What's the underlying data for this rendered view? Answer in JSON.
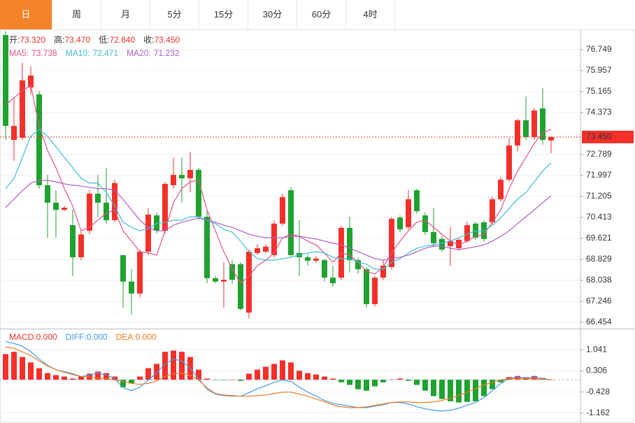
{
  "tabs": [
    "日",
    "周",
    "月",
    "5分",
    "15分",
    "30分",
    "60分",
    "4时"
  ],
  "active_tab": 0,
  "chart_data": [
    {
      "type": "candlestick",
      "up_color": "#f5302a",
      "down_color": "#1fa22f",
      "ylim": [
        66.216,
        77.435
      ],
      "yticks": [
        76.749,
        75.957,
        75.165,
        74.373,
        72.789,
        71.997,
        71.205,
        70.413,
        69.621,
        68.829,
        68.038,
        67.246,
        66.454
      ],
      "grid": true,
      "info": [
        {
          "name": "开:",
          "text": "73.320"
        },
        {
          "name": "高:",
          "text": "73.470"
        },
        {
          "name": "低:",
          "text": "72.840"
        },
        {
          "name": "收:",
          "text": "73.450"
        }
      ],
      "last_price": 73.45,
      "last_price_label": "73.450",
      "candles": [
        {
          "o": 77.3,
          "h": 77.44,
          "l": 73.34,
          "c": 73.87
        },
        {
          "o": 73.34,
          "h": 74.93,
          "l": 72.55,
          "c": 73.87
        },
        {
          "o": 73.42,
          "h": 76.25,
          "l": 73.34,
          "c": 75.59
        },
        {
          "o": 75.32,
          "h": 76.12,
          "l": 75.06,
          "c": 75.77
        },
        {
          "o": 75.06,
          "h": 75.19,
          "l": 71.5,
          "c": 71.63
        },
        {
          "o": 71.63,
          "h": 72.02,
          "l": 69.65,
          "c": 70.97
        },
        {
          "o": 70.97,
          "h": 71.44,
          "l": 69.65,
          "c": 70.7
        },
        {
          "o": 70.7,
          "h": 70.85,
          "l": 70.65,
          "c": 70.78
        },
        {
          "o": 70.12,
          "h": 70.7,
          "l": 68.2,
          "c": 68.91
        },
        {
          "o": 68.91,
          "h": 69.91,
          "l": 68.8,
          "c": 69.77
        },
        {
          "o": 69.91,
          "h": 71.44,
          "l": 69.78,
          "c": 71.31
        },
        {
          "o": 71.31,
          "h": 72.02,
          "l": 70.44,
          "c": 70.97
        },
        {
          "o": 70.97,
          "h": 72.29,
          "l": 70.18,
          "c": 70.31
        },
        {
          "o": 70.31,
          "h": 71.84,
          "l": 70.23,
          "c": 71.71
        },
        {
          "o": 68.99,
          "h": 68.99,
          "l": 67.01,
          "c": 67.99
        },
        {
          "o": 67.99,
          "h": 68.46,
          "l": 66.74,
          "c": 67.54
        },
        {
          "o": 67.54,
          "h": 69.2,
          "l": 67.4,
          "c": 69.12
        },
        {
          "o": 69.12,
          "h": 70.76,
          "l": 68.99,
          "c": 70.52
        },
        {
          "o": 70.49,
          "h": 70.6,
          "l": 69.8,
          "c": 69.91
        },
        {
          "o": 69.91,
          "h": 71.75,
          "l": 69.8,
          "c": 71.68
        },
        {
          "o": 71.63,
          "h": 72.68,
          "l": 71.5,
          "c": 72.02
        },
        {
          "o": 72.02,
          "h": 72.68,
          "l": 70.97,
          "c": 71.89
        },
        {
          "o": 71.89,
          "h": 72.87,
          "l": 71.36,
          "c": 72.21
        },
        {
          "o": 72.21,
          "h": 72.29,
          "l": 70.3,
          "c": 70.44
        },
        {
          "o": 70.44,
          "h": 70.7,
          "l": 67.93,
          "c": 68.12
        },
        {
          "o": 68.12,
          "h": 68.2,
          "l": 67.93,
          "c": 67.99
        },
        {
          "o": 67.99,
          "h": 68.72,
          "l": 67.01,
          "c": 68.06
        },
        {
          "o": 68.65,
          "h": 68.8,
          "l": 67.9,
          "c": 68.06
        },
        {
          "o": 68.65,
          "h": 68.72,
          "l": 66.9,
          "c": 66.96
        },
        {
          "o": 66.82,
          "h": 69.2,
          "l": 66.6,
          "c": 69.12
        },
        {
          "o": 69.07,
          "h": 69.4,
          "l": 69.0,
          "c": 69.25
        },
        {
          "o": 69.12,
          "h": 69.4,
          "l": 69.05,
          "c": 69.31
        },
        {
          "o": 68.99,
          "h": 70.3,
          "l": 68.9,
          "c": 70.18
        },
        {
          "o": 70.18,
          "h": 71.3,
          "l": 70.1,
          "c": 71.18
        },
        {
          "o": 71.44,
          "h": 71.55,
          "l": 68.9,
          "c": 68.99
        },
        {
          "o": 69.07,
          "h": 70.31,
          "l": 68.2,
          "c": 68.91
        },
        {
          "o": 68.91,
          "h": 69.0,
          "l": 68.6,
          "c": 68.78
        },
        {
          "o": 68.78,
          "h": 68.95,
          "l": 68.7,
          "c": 68.86
        },
        {
          "o": 68.8,
          "h": 68.86,
          "l": 68.0,
          "c": 68.14
        },
        {
          "o": 68.14,
          "h": 68.59,
          "l": 67.8,
          "c": 67.93
        },
        {
          "o": 68.14,
          "h": 70.1,
          "l": 68.05,
          "c": 70.02
        },
        {
          "o": 70.02,
          "h": 70.44,
          "l": 68.33,
          "c": 68.8
        },
        {
          "o": 68.8,
          "h": 68.9,
          "l": 68.3,
          "c": 68.46
        },
        {
          "o": 68.46,
          "h": 68.55,
          "l": 67.0,
          "c": 67.14
        },
        {
          "o": 67.14,
          "h": 68.2,
          "l": 67.05,
          "c": 68.14
        },
        {
          "o": 68.14,
          "h": 68.8,
          "l": 68.05,
          "c": 68.59
        },
        {
          "o": 68.54,
          "h": 70.44,
          "l": 68.45,
          "c": 70.36
        },
        {
          "o": 70.41,
          "h": 70.5,
          "l": 69.85,
          "c": 69.96
        },
        {
          "o": 70.04,
          "h": 71.44,
          "l": 69.96,
          "c": 71.1
        },
        {
          "o": 71.44,
          "h": 71.5,
          "l": 70.55,
          "c": 70.65
        },
        {
          "o": 70.49,
          "h": 70.6,
          "l": 69.75,
          "c": 69.86
        },
        {
          "o": 69.86,
          "h": 70.78,
          "l": 69.3,
          "c": 69.44
        },
        {
          "o": 69.6,
          "h": 69.7,
          "l": 69.1,
          "c": 69.2
        },
        {
          "o": 69.33,
          "h": 70.04,
          "l": 68.59,
          "c": 69.52
        },
        {
          "o": 69.25,
          "h": 69.65,
          "l": 69.15,
          "c": 69.57
        },
        {
          "o": 69.52,
          "h": 70.25,
          "l": 69.45,
          "c": 70.12
        },
        {
          "o": 70.18,
          "h": 70.25,
          "l": 69.55,
          "c": 69.65
        },
        {
          "o": 70.23,
          "h": 70.3,
          "l": 69.5,
          "c": 69.6
        },
        {
          "o": 70.23,
          "h": 71.2,
          "l": 70.15,
          "c": 71.1
        },
        {
          "o": 71.1,
          "h": 71.95,
          "l": 71.0,
          "c": 71.84
        },
        {
          "o": 71.84,
          "h": 73.4,
          "l": 71.75,
          "c": 73.13
        },
        {
          "o": 73.13,
          "h": 74.15,
          "l": 72.9,
          "c": 74.08
        },
        {
          "o": 74.08,
          "h": 74.98,
          "l": 73.34,
          "c": 73.45
        },
        {
          "o": 73.45,
          "h": 74.55,
          "l": 73.34,
          "c": 74.45
        },
        {
          "o": 74.53,
          "h": 75.3,
          "l": 73.16,
          "c": 73.34
        },
        {
          "o": 73.32,
          "h": 73.47,
          "l": 72.84,
          "c": 73.45
        }
      ],
      "series": [
        {
          "name": "MA5:",
          "value_label": "73.738",
          "color": "#e8528a",
          "values": [
            74.66,
            74.93,
            75.19,
            75.4,
            73.87,
            72.95,
            72.29,
            71.5,
            70.84,
            69.91,
            70.04,
            70.31,
            70.57,
            70.7,
            69.91,
            69.52,
            69.12,
            69.07,
            68.99,
            69.91,
            70.97,
            71.5,
            71.76,
            71.81,
            70.7,
            69.91,
            69.12,
            68.46,
            67.93,
            68.2,
            68.59,
            68.8,
            69.07,
            69.65,
            69.78,
            69.7,
            69.52,
            69.38,
            69.07,
            68.72,
            69.07,
            68.99,
            68.72,
            68.38,
            68.28,
            68.54,
            69.07,
            69.52,
            69.91,
            70.23,
            70.31,
            70.04,
            69.78,
            69.52,
            69.38,
            69.52,
            69.7,
            69.78,
            70.23,
            70.7,
            71.5,
            72.16,
            72.68,
            73.21,
            73.61,
            73.738
          ]
        },
        {
          "name": "MA10:",
          "value_label": "72.471",
          "color": "#3cbfd8",
          "values": [
            71.5,
            71.89,
            72.68,
            73.48,
            73.74,
            73.48,
            73.08,
            72.68,
            72.29,
            71.89,
            71.71,
            71.71,
            71.36,
            70.84,
            70.23,
            70.04,
            69.91,
            69.99,
            70.18,
            70.23,
            70.31,
            70.31,
            70.44,
            70.44,
            70.31,
            70.18,
            69.97,
            69.86,
            69.52,
            69.12,
            68.86,
            68.8,
            68.8,
            68.86,
            68.91,
            68.99,
            69.07,
            69.12,
            69.07,
            68.91,
            68.86,
            68.86,
            68.72,
            68.65,
            68.46,
            68.46,
            68.72,
            68.86,
            69.07,
            69.25,
            69.33,
            69.38,
            69.44,
            69.52,
            69.65,
            69.78,
            69.91,
            69.91,
            70.12,
            70.39,
            70.76,
            71.1,
            71.36,
            71.76,
            72.16,
            72.471
          ]
        },
        {
          "name": "MA20:",
          "value_label": "71.232",
          "color": "#b05cc8",
          "values": [
            70.78,
            71.1,
            71.42,
            71.71,
            71.81,
            71.81,
            71.76,
            71.68,
            71.63,
            71.6,
            71.55,
            71.5,
            71.5,
            71.44,
            71.1,
            70.7,
            70.31,
            70.04,
            69.91,
            69.91,
            70.12,
            70.23,
            70.31,
            70.39,
            70.31,
            70.23,
            70.12,
            70.04,
            69.91,
            69.78,
            69.7,
            69.65,
            69.65,
            69.65,
            69.7,
            69.7,
            69.65,
            69.6,
            69.52,
            69.44,
            69.38,
            69.25,
            69.12,
            68.99,
            68.86,
            68.8,
            68.86,
            68.91,
            68.99,
            69.12,
            69.25,
            69.33,
            69.33,
            69.25,
            69.2,
            69.25,
            69.31,
            69.38,
            69.52,
            69.7,
            69.91,
            70.18,
            70.44,
            70.7,
            70.97,
            71.232
          ]
        }
      ]
    },
    {
      "type": "macd",
      "up_color": "#f5302a",
      "down_color": "#1fa22f",
      "ylim": [
        -1.455,
        1.726
      ],
      "yticks": [
        1.041,
        0.306,
        -0.428,
        -1.162
      ],
      "grid": true,
      "histogram": {
        "name": "MACD:",
        "value_label": "0.000",
        "color": "#e8312a",
        "values": [
          0.89,
          0.97,
          0.79,
          0.6,
          0.4,
          0.23,
          0.16,
          0.11,
          0.04,
          0.11,
          0.21,
          0.28,
          0.23,
          0.11,
          -0.26,
          -0.13,
          0.11,
          0.4,
          0.55,
          0.97,
          1.01,
          0.97,
          0.79,
          0.35,
          0.04,
          -0.01,
          -0.01,
          0,
          -0.04,
          0.21,
          0.35,
          0.45,
          0.55,
          0.67,
          0.6,
          0.31,
          0.23,
          0.18,
          0.11,
          0.04,
          -0.09,
          -0.18,
          -0.33,
          -0.38,
          -0.23,
          -0.09,
          0.01,
          0.04,
          -0.04,
          -0.18,
          -0.38,
          -0.57,
          -0.67,
          -0.75,
          -0.79,
          -0.77,
          -0.75,
          -0.57,
          -0.33,
          -0.09,
          0.09,
          0.13,
          0.09,
          0.13,
          0.06,
          0
        ]
      },
      "series": [
        {
          "name": "DIFF:",
          "value_label": "0.000",
          "color": "#3f9ae8",
          "values": [
            1.33,
            1.26,
            1.16,
            0.97,
            0.72,
            0.5,
            0.35,
            0.28,
            0.21,
            0.11,
            0.16,
            0.23,
            0.16,
            0.04,
            -0.28,
            -0.38,
            -0.26,
            -0.01,
            0.23,
            0.55,
            0.72,
            0.65,
            0.4,
            0.04,
            -0.33,
            -0.5,
            -0.55,
            -0.57,
            -0.57,
            -0.45,
            -0.31,
            -0.21,
            -0.09,
            -0.01,
            -0.06,
            -0.26,
            -0.43,
            -0.57,
            -0.72,
            -0.82,
            -0.87,
            -0.92,
            -0.97,
            -0.97,
            -0.92,
            -0.87,
            -0.79,
            -0.79,
            -0.84,
            -0.94,
            -1.01,
            -1.06,
            -1.09,
            -1.06,
            -0.99,
            -0.89,
            -0.79,
            -0.62,
            -0.38,
            -0.13,
            0.04,
            0.09,
            0.06,
            0.09,
            0.04,
            0
          ]
        },
        {
          "name": "DEA:",
          "value_label": "0.000",
          "color": "#f07b20",
          "values": [
            1.14,
            1.09,
            0.97,
            0.84,
            0.65,
            0.48,
            0.35,
            0.26,
            0.18,
            0.11,
            0.09,
            0.06,
            0.04,
            -0.01,
            -0.06,
            -0.13,
            -0.16,
            -0.13,
            -0.04,
            0.11,
            0.21,
            0.23,
            0.16,
            -0.01,
            -0.28,
            -0.48,
            -0.53,
            -0.55,
            -0.57,
            -0.57,
            -0.55,
            -0.53,
            -0.48,
            -0.43,
            -0.43,
            -0.5,
            -0.57,
            -0.67,
            -0.77,
            -0.87,
            -0.94,
            -0.97,
            -0.97,
            -0.94,
            -0.89,
            -0.84,
            -0.79,
            -0.77,
            -0.77,
            -0.79,
            -0.79,
            -0.77,
            -0.72,
            -0.65,
            -0.55,
            -0.43,
            -0.31,
            -0.18,
            -0.09,
            -0.01,
            0.04,
            0.04,
            0.04,
            0.04,
            0.01,
            0
          ]
        }
      ]
    }
  ]
}
